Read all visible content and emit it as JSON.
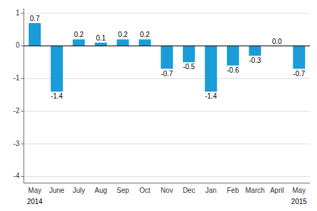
{
  "chart_data": {
    "type": "bar",
    "categories": [
      "May",
      "June",
      "July",
      "Aug",
      "Sep",
      "Oct",
      "Nov",
      "Dec",
      "Jan",
      "Feb",
      "March",
      "April",
      "May"
    ],
    "values": [
      0.7,
      -1.4,
      0.2,
      0.1,
      0.2,
      0.2,
      -0.7,
      -0.5,
      -1.4,
      -0.6,
      -0.3,
      0.0,
      -0.7
    ],
    "value_labels": [
      "0.7",
      "-1.4",
      "0.2",
      "0.1",
      "0.2",
      "0.2",
      "-0.7",
      "-0.5",
      "-1.4",
      "-0.6",
      "-0.3",
      "0.0",
      "-0.7"
    ],
    "color": "#1a9cd8",
    "ylim": [
      -4.2,
      1.15
    ],
    "yticks": [
      -4,
      -3,
      -2,
      -1,
      0,
      1
    ],
    "grid": true,
    "data_labels": true,
    "annotations": [
      {
        "text": "2014",
        "category": 0
      },
      {
        "text": "2015",
        "category": 12
      }
    ]
  }
}
